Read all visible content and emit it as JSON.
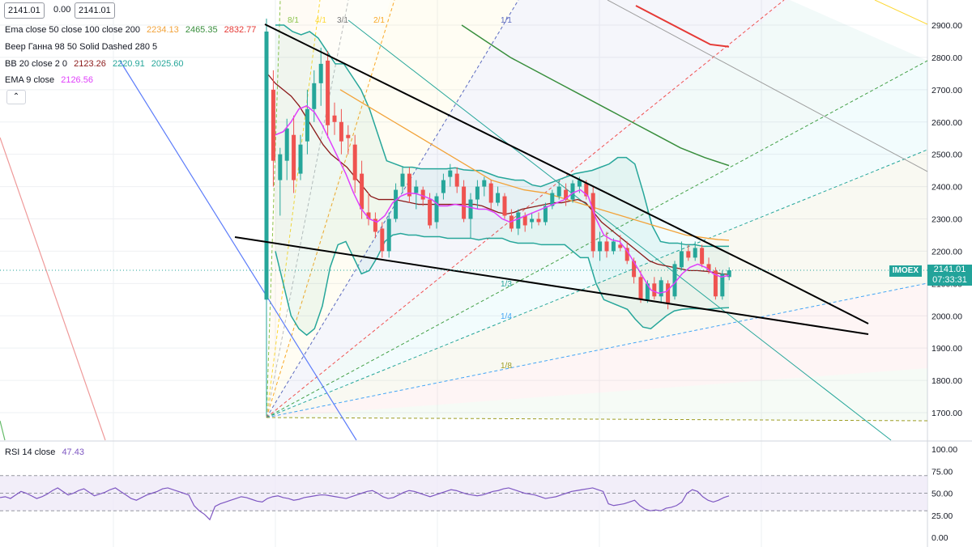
{
  "header": {
    "price_box_1": "2141.01",
    "change": "0.00",
    "price_box_2": "2141.01"
  },
  "legends": {
    "ema": {
      "label": "Ema close 50 close 100 close 200",
      "v50": "2234.13",
      "v100": "2465.35",
      "v200": "2832.77"
    },
    "gann": {
      "label": "Веер Ганна 98 50 Solid Dashed 280 5"
    },
    "bb": {
      "label": "BB 20 close 2 0",
      "basis": "2123.26",
      "upper": "2220.91",
      "lower": "2025.60"
    },
    "ema9": {
      "label": "EMA 9 close",
      "value": "2126.56"
    },
    "rsi": {
      "label": "RSI 14 close",
      "value": "47.43"
    }
  },
  "collapse_icon": "chevron-up-icon",
  "last_price": {
    "symbol": "IMOEX",
    "value": "2141.01",
    "countdown": "07:33:31"
  },
  "colors": {
    "up": "#26a69a",
    "down": "#ef5350",
    "ema50": "#f2a33a",
    "ema100": "#388e3c",
    "ema200": "#e53935",
    "ema9": "#e040fb",
    "bb_basis": "#8b1a1a",
    "bb_band": "#26a69a",
    "rsi_line": "#7e57c2",
    "rsi_fill": "#ede7f6",
    "trendline": "#000000",
    "accent": "#22a39a"
  },
  "chart_data": [
    {
      "type": "candlestick",
      "ylim": [
        1650,
        2960
      ],
      "y_ticks": [
        1700,
        1800,
        1900,
        2000,
        2100,
        2200,
        2300,
        2400,
        2500,
        2600,
        2700,
        2800,
        2900
      ],
      "tick_labels": [
        "1700.00",
        "1800.00",
        "1900.00",
        "2000.00",
        "2100.00",
        "2200.00",
        "2300.00",
        "2400.00",
        "2500.00",
        "2600.00",
        "2700.00",
        "2800.00",
        "2900.00"
      ],
      "series": [
        {
          "name": "EMA 9",
          "values": [
            2560,
            2570,
            2600,
            2640,
            2650,
            2630,
            2590,
            2540,
            2490,
            2440,
            2380,
            2330,
            2300,
            2290,
            2310,
            2350,
            2370,
            2380,
            2378,
            2370,
            2360,
            2340,
            2340,
            2345,
            2340,
            2335,
            2330,
            2330,
            2320,
            2300,
            2290,
            2300,
            2310,
            2320,
            2330,
            2340,
            2350,
            2360,
            2380,
            2390,
            2370,
            2300,
            2250,
            2235,
            2230,
            2200,
            2160,
            2120,
            2080,
            2070,
            2075,
            2100,
            2130,
            2150,
            2160,
            2150,
            2130,
            2120,
            2125
          ]
        },
        {
          "name": "BB basis",
          "values": [
            2750,
            2720,
            2700,
            2680,
            2650,
            2610,
            2570,
            2530,
            2500,
            2480,
            2460,
            2430,
            2400,
            2370,
            2360,
            2360,
            2360,
            2355,
            2350,
            2345,
            2345,
            2345,
            2345,
            2345,
            2345,
            2345,
            2345,
            2340,
            2330,
            2320,
            2315,
            2320,
            2330,
            2335,
            2340,
            2345,
            2350,
            2350,
            2355,
            2360,
            2350,
            2320,
            2290,
            2270,
            2250,
            2230,
            2210,
            2190,
            2170,
            2160,
            2155,
            2150,
            2145,
            2140,
            2140,
            2138,
            2135,
            2130,
            2128
          ]
        },
        {
          "name": "BB upper",
          "values": [
            2900,
            2900,
            2880,
            2870,
            2880,
            2860,
            2820,
            2780,
            2780,
            2740,
            2700,
            2640,
            2560,
            2480,
            2470,
            2460,
            2460,
            2455,
            2455,
            2455,
            2455,
            2458,
            2452,
            2450,
            2450,
            2440,
            2430,
            2425,
            2420,
            2420,
            2405,
            2400,
            2410,
            2420,
            2430,
            2440,
            2445,
            2450,
            2460,
            2470,
            2490,
            2490,
            2470,
            2380,
            2280,
            2230,
            2225,
            2225,
            2220,
            2220,
            2215,
            2215,
            2215,
            2215
          ]
        },
        {
          "name": "BB lower",
          "values": [
            2200,
            2100,
            2000,
            1960,
            1940,
            1960,
            2030,
            2150,
            2220,
            2230,
            2180,
            2130,
            2140,
            2180,
            2230,
            2250,
            2255,
            2250,
            2250,
            2245,
            2245,
            2245,
            2240,
            2240,
            2240,
            2240,
            2235,
            2240,
            2240,
            2240,
            2230,
            2225,
            2225,
            2225,
            2220,
            2220,
            2220,
            2220,
            2200,
            2180,
            2180,
            2100,
            2050,
            2040,
            2030,
            2020,
            1990,
            1965,
            1960,
            1980,
            2000,
            2015,
            2020,
            2022,
            2022,
            2020,
            2022,
            2024,
            2025
          ]
        },
        {
          "name": "EMA 50",
          "values": [
            2700,
            2680,
            2660,
            2640,
            2620,
            2600,
            2580,
            2560,
            2540,
            2520,
            2500,
            2480,
            2460,
            2440,
            2420,
            2410,
            2400,
            2390,
            2385,
            2380,
            2370,
            2360,
            2350,
            2340,
            2330,
            2320,
            2310,
            2300,
            2290,
            2280,
            2270,
            2260,
            2250,
            2245,
            2240,
            2236,
            2234
          ]
        },
        {
          "name": "EMA 100",
          "values": [
            2900,
            2850,
            2800,
            2760,
            2720,
            2680,
            2640,
            2600,
            2560,
            2520,
            2490,
            2465
          ]
        },
        {
          "name": "EMA 200",
          "values": [
            2960,
            2930,
            2900,
            2870,
            2840,
            2833
          ]
        },
        {
          "name": "Upper trendline",
          "values": [
            2905,
            2885,
            2866,
            2847,
            2828,
            2809,
            2790,
            2771,
            2752,
            2733,
            2714,
            2695,
            2676,
            2657,
            2638,
            2619,
            2600,
            2581,
            2562,
            2543,
            2524,
            2505,
            2486,
            2467,
            2448,
            2429,
            2410,
            2391,
            2372,
            2353,
            2334,
            2315,
            2296,
            2277,
            2258,
            2239,
            2220,
            2201,
            2182,
            2163,
            2144,
            2125,
            2106,
            2087,
            2068,
            2049,
            2030,
            2011,
            1992,
            1975
          ]
        },
        {
          "name": "Lower trendline",
          "values": [
            2250,
            2244,
            2238,
            2232,
            2226,
            2220,
            2214,
            2208,
            2202,
            2196,
            2190,
            2184,
            2178,
            2172,
            2166,
            2160,
            2154,
            2148,
            2142,
            2136,
            2130,
            2124,
            2118,
            2112,
            2106,
            2100,
            2094,
            2088,
            2082,
            2076,
            2070,
            2064,
            2058,
            2052,
            2046,
            2040,
            2034,
            2028,
            2022,
            2016,
            2010,
            2004,
            1998,
            1992,
            1986,
            1980,
            1974,
            1968,
            1962,
            1956,
            1950,
            1944,
            1940
          ]
        }
      ],
      "candles": [
        {
          "o": 2050,
          "h": 2920,
          "l": 1690,
          "c": 2880
        },
        {
          "o": 2700,
          "h": 2760,
          "l": 2400,
          "c": 2480
        },
        {
          "o": 2420,
          "h": 2520,
          "l": 2310,
          "c": 2500
        },
        {
          "o": 2480,
          "h": 2610,
          "l": 2420,
          "c": 2580
        },
        {
          "o": 2560,
          "h": 2620,
          "l": 2380,
          "c": 2420
        },
        {
          "o": 2440,
          "h": 2560,
          "l": 2420,
          "c": 2530
        },
        {
          "o": 2540,
          "h": 2700,
          "l": 2500,
          "c": 2640
        },
        {
          "o": 2640,
          "h": 2760,
          "l": 2600,
          "c": 2720
        },
        {
          "o": 2720,
          "h": 2830,
          "l": 2650,
          "c": 2780
        },
        {
          "o": 2790,
          "h": 2820,
          "l": 2550,
          "c": 2590
        },
        {
          "o": 2620,
          "h": 2660,
          "l": 2560,
          "c": 2600
        },
        {
          "o": 2600,
          "h": 2640,
          "l": 2500,
          "c": 2540
        },
        {
          "o": 2560,
          "h": 2590,
          "l": 2500,
          "c": 2550
        },
        {
          "o": 2530,
          "h": 2560,
          "l": 2380,
          "c": 2420
        },
        {
          "o": 2440,
          "h": 2480,
          "l": 2300,
          "c": 2330
        },
        {
          "o": 2320,
          "h": 2380,
          "l": 2280,
          "c": 2300
        },
        {
          "o": 2300,
          "h": 2320,
          "l": 2240,
          "c": 2260
        },
        {
          "o": 2270,
          "h": 2290,
          "l": 2180,
          "c": 2200
        },
        {
          "o": 2200,
          "h": 2320,
          "l": 2180,
          "c": 2300
        },
        {
          "o": 2300,
          "h": 2410,
          "l": 2290,
          "c": 2390
        },
        {
          "o": 2400,
          "h": 2460,
          "l": 2380,
          "c": 2440
        },
        {
          "o": 2440,
          "h": 2460,
          "l": 2350,
          "c": 2370
        },
        {
          "o": 2380,
          "h": 2420,
          "l": 2330,
          "c": 2400
        },
        {
          "o": 2390,
          "h": 2400,
          "l": 2340,
          "c": 2360
        },
        {
          "o": 2360,
          "h": 2380,
          "l": 2270,
          "c": 2280
        },
        {
          "o": 2290,
          "h": 2380,
          "l": 2270,
          "c": 2370
        },
        {
          "o": 2380,
          "h": 2440,
          "l": 2360,
          "c": 2420
        },
        {
          "o": 2430,
          "h": 2470,
          "l": 2400,
          "c": 2450
        },
        {
          "o": 2440,
          "h": 2460,
          "l": 2380,
          "c": 2400
        },
        {
          "o": 2400,
          "h": 2420,
          "l": 2290,
          "c": 2300
        },
        {
          "o": 2300,
          "h": 2380,
          "l": 2240,
          "c": 2360
        },
        {
          "o": 2360,
          "h": 2420,
          "l": 2330,
          "c": 2400
        },
        {
          "o": 2400,
          "h": 2430,
          "l": 2370,
          "c": 2420
        },
        {
          "o": 2410,
          "h": 2420,
          "l": 2330,
          "c": 2350
        },
        {
          "o": 2350,
          "h": 2400,
          "l": 2340,
          "c": 2380
        },
        {
          "o": 2370,
          "h": 2380,
          "l": 2300,
          "c": 2310
        },
        {
          "o": 2310,
          "h": 2330,
          "l": 2260,
          "c": 2270
        },
        {
          "o": 2270,
          "h": 2330,
          "l": 2250,
          "c": 2320
        },
        {
          "o": 2310,
          "h": 2320,
          "l": 2260,
          "c": 2280
        },
        {
          "o": 2290,
          "h": 2320,
          "l": 2270,
          "c": 2300
        },
        {
          "o": 2300,
          "h": 2320,
          "l": 2280,
          "c": 2290
        },
        {
          "o": 2290,
          "h": 2350,
          "l": 2280,
          "c": 2340
        },
        {
          "o": 2340,
          "h": 2390,
          "l": 2330,
          "c": 2380
        },
        {
          "o": 2370,
          "h": 2420,
          "l": 2360,
          "c": 2400
        },
        {
          "o": 2390,
          "h": 2410,
          "l": 2340,
          "c": 2360
        },
        {
          "o": 2360,
          "h": 2420,
          "l": 2350,
          "c": 2410
        },
        {
          "o": 2400,
          "h": 2430,
          "l": 2380,
          "c": 2420
        },
        {
          "o": 2410,
          "h": 2420,
          "l": 2360,
          "c": 2370
        },
        {
          "o": 2380,
          "h": 2400,
          "l": 2180,
          "c": 2200
        },
        {
          "o": 2200,
          "h": 2260,
          "l": 2170,
          "c": 2230
        },
        {
          "o": 2230,
          "h": 2260,
          "l": 2180,
          "c": 2200
        },
        {
          "o": 2200,
          "h": 2240,
          "l": 2190,
          "c": 2230
        },
        {
          "o": 2220,
          "h": 2250,
          "l": 2200,
          "c": 2210
        },
        {
          "o": 2210,
          "h": 2230,
          "l": 2160,
          "c": 2170
        },
        {
          "o": 2170,
          "h": 2180,
          "l": 2100,
          "c": 2120
        },
        {
          "o": 2120,
          "h": 2140,
          "l": 2040,
          "c": 2050
        },
        {
          "o": 2050,
          "h": 2110,
          "l": 2040,
          "c": 2100
        },
        {
          "o": 2100,
          "h": 2120,
          "l": 2050,
          "c": 2060
        },
        {
          "o": 2060,
          "h": 2120,
          "l": 2040,
          "c": 2110
        },
        {
          "o": 2100,
          "h": 2110,
          "l": 2020,
          "c": 2040
        },
        {
          "o": 2060,
          "h": 2170,
          "l": 2050,
          "c": 2160
        },
        {
          "o": 2150,
          "h": 2230,
          "l": 2140,
          "c": 2200
        },
        {
          "o": 2200,
          "h": 2220,
          "l": 2170,
          "c": 2180
        },
        {
          "o": 2180,
          "h": 2230,
          "l": 2170,
          "c": 2210
        },
        {
          "o": 2210,
          "h": 2220,
          "l": 2150,
          "c": 2160
        },
        {
          "o": 2160,
          "h": 2180,
          "l": 2130,
          "c": 2140
        },
        {
          "o": 2140,
          "h": 2150,
          "l": 2050,
          "c": 2060
        },
        {
          "o": 2060,
          "h": 2140,
          "l": 2050,
          "c": 2130
        },
        {
          "o": 2120,
          "h": 2150,
          "l": 2110,
          "c": 2141
        }
      ],
      "fan_labels": [
        "8/1",
        "4/1",
        "3/1",
        "2/1",
        "1/1",
        "1/3",
        "1/4",
        "1/8"
      ]
    },
    {
      "type": "line",
      "title": "RSI 14 close",
      "ylim": [
        0,
        100
      ],
      "y_ticks": [
        0,
        25,
        50,
        75,
        100
      ],
      "tick_labels": [
        "0.00",
        "25.00",
        "50.00",
        "75.00",
        "100.00"
      ],
      "band": [
        30,
        70
      ],
      "series": [
        {
          "name": "RSI",
          "values": [
            45,
            46,
            44,
            48,
            52,
            50,
            47,
            44,
            46,
            49,
            53,
            56,
            52,
            48,
            50,
            53,
            55,
            51,
            47,
            49,
            51,
            54,
            56,
            52,
            48,
            44,
            42,
            45,
            48,
            50,
            52,
            55,
            56,
            54,
            52,
            50,
            48,
            36,
            30,
            26,
            20,
            35,
            38,
            40,
            42,
            44,
            46,
            45,
            43,
            41,
            40,
            44,
            46,
            47,
            45,
            44,
            42,
            43,
            45,
            46,
            47,
            48,
            48,
            47,
            46,
            45,
            44,
            46,
            48,
            50,
            52,
            53,
            50,
            46,
            44,
            45,
            48,
            51,
            53,
            52,
            50,
            48,
            46,
            48,
            50,
            52,
            54,
            53,
            51,
            49,
            48,
            47,
            48,
            50,
            52,
            53,
            55,
            56,
            54,
            52,
            50,
            49,
            48,
            46,
            44,
            45,
            46,
            48,
            50,
            52,
            53,
            54,
            55,
            56,
            54,
            52,
            38,
            36,
            37,
            38,
            40,
            42,
            36,
            32,
            30,
            31,
            30,
            33,
            34,
            36,
            40,
            50,
            54,
            52,
            46,
            42,
            40,
            42,
            45,
            47
          ]
        }
      ]
    }
  ]
}
